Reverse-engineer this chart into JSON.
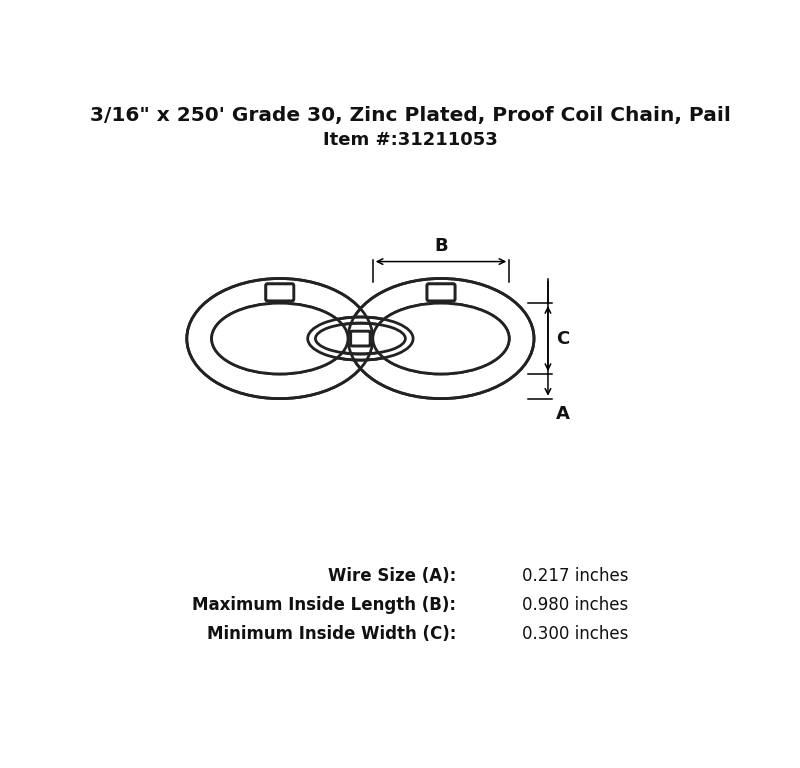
{
  "title_line1": "3/16\" x 250' Grade 30, Zinc Plated, Proof Coil Chain, Pail",
  "title_line2": "Item #:31211053",
  "bg_color": "#ffffff",
  "chain_color": "#222222",
  "dim_color": "#000000",
  "spec_label1": "Wire Size (A):",
  "spec_value1": "0.217 inches",
  "spec_label2": "Maximum Inside Length (B):",
  "spec_value2": "0.980 inches",
  "spec_label3": "Minimum Inside Width (C):",
  "spec_value3": "0.300 inches",
  "figsize": [
    8.0,
    7.68
  ],
  "dpi": 100
}
